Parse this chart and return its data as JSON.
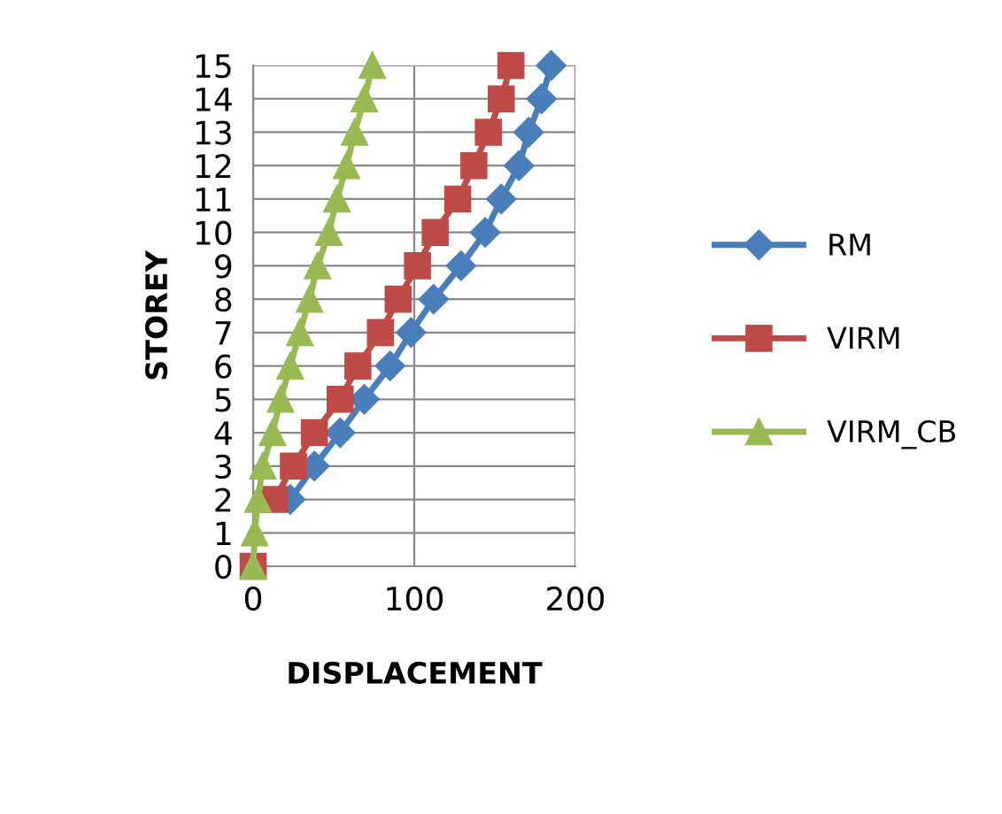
{
  "chart_data": {
    "type": "line",
    "xlabel": "DISPLACEMENT",
    "ylabel": "STOREY",
    "xlim": [
      0,
      200
    ],
    "xticks": [
      0,
      100,
      200
    ],
    "ylim": [
      0,
      15
    ],
    "yticks": [
      0,
      1,
      2,
      3,
      4,
      5,
      6,
      7,
      8,
      9,
      10,
      11,
      12,
      13,
      14,
      15
    ],
    "grid": true,
    "legend": "right",
    "line_style": "solid",
    "series": [
      {
        "name": "RM",
        "color": "#4a7ebb",
        "marker": "diamond",
        "x": [
          null,
          null,
          23,
          38,
          54,
          69,
          85,
          98,
          112,
          129,
          144,
          154,
          165,
          171,
          179,
          185
        ],
        "values": [
          null,
          null,
          2,
          3,
          4,
          5,
          6,
          7,
          8,
          9,
          10,
          11,
          12,
          13,
          14,
          15
        ]
      },
      {
        "name": "VIRM",
        "color": "#be4b48",
        "marker": "square",
        "x": [
          0,
          null,
          13,
          25,
          38,
          54,
          65,
          79,
          90,
          102,
          113,
          127,
          137,
          146,
          154,
          160
        ],
        "values": [
          0,
          null,
          2,
          3,
          4,
          5,
          6,
          7,
          8,
          9,
          10,
          11,
          12,
          13,
          14,
          15
        ]
      },
      {
        "name": "VIRM_CB",
        "color": "#98b954",
        "marker": "triangle",
        "x": [
          0,
          1,
          3,
          6,
          12,
          17,
          23,
          29,
          35,
          40,
          47,
          52,
          58,
          63,
          69,
          74
        ],
        "values": [
          0,
          1,
          2,
          3,
          4,
          5,
          6,
          7,
          8,
          9,
          10,
          11,
          12,
          13,
          14,
          15
        ]
      }
    ]
  }
}
